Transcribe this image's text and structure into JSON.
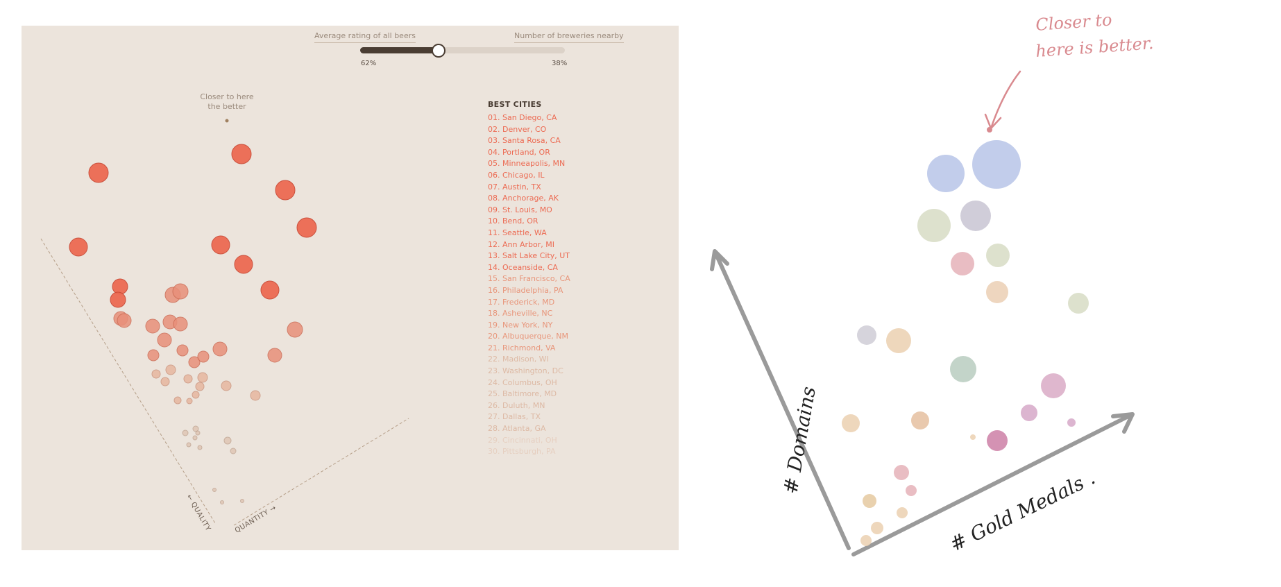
{
  "header": {
    "left_label": "Average rating of all beers",
    "right_label": "Number of breweries nearby",
    "left_pct": "62%",
    "right_pct": "38%",
    "slider_value": 0.38
  },
  "annotation": {
    "line1": "Closer to here",
    "line2": "the better"
  },
  "axes": {
    "quality": "← QUALITY",
    "quantity": "QUANTITY →"
  },
  "best_cities": {
    "title": "BEST CITIES",
    "items": [
      "01. San Diego, CA",
      "02. Denver, CO",
      "03. Santa Rosa, CA",
      "04. Portland, OR",
      "05. Minneapolis, MN",
      "06. Chicago, IL",
      "07. Austin, TX",
      "08. Anchorage, AK",
      "09. St. Louis, MO",
      "10. Bend, OR",
      "11. Seattle, WA",
      "12. Ann Arbor, MI",
      "13. Salt Lake City, UT",
      "14. Oceanside, CA",
      "15. San Francisco, CA",
      "16. Philadelphia, PA",
      "17. Frederick, MD",
      "18. Asheville, NC",
      "19. New York, NY",
      "20. Albuquerque, NM",
      "21. Richmond, VA",
      "22. Madison, WI",
      "23. Washington, DC",
      "24. Columbus, OH",
      "25. Baltimore, MD",
      "26. Duluth, MN",
      "27. Dallas, TX",
      "28. Atlanta, GA",
      "29. Cincinnati, OH",
      "30. Pittsburgh, PA"
    ]
  },
  "colors": {
    "strong": "#ec6a52",
    "mid": "#e8957a",
    "weak": "#ddb9a4",
    "panel": "#ece4dc",
    "text_dark": "#4a3d33",
    "accent_sketch": "#d98a8f"
  },
  "sketch": {
    "note_line1": "Closer to",
    "note_line2": "here is better.",
    "y_axis_label": "# Domains",
    "x_axis_label": "# Gold Medals ."
  }
}
